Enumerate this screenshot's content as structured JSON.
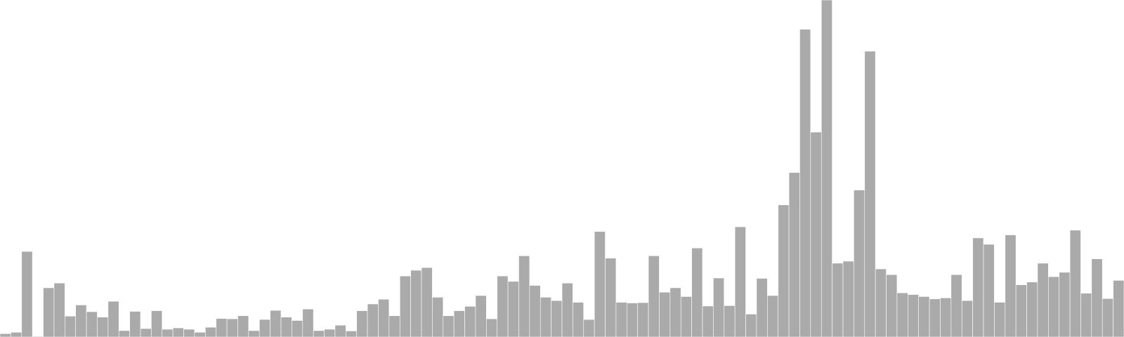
{
  "chart_data": {
    "type": "bar",
    "title": "",
    "xlabel": "",
    "ylabel": "",
    "grid": false,
    "legend": "none",
    "bar_color": "#AAAAAA",
    "ylim": [
      0,
      100
    ],
    "values": [
      1.0,
      1.4,
      25.4,
      0.2,
      14.6,
      16.0,
      6.2,
      9.5,
      7.5,
      5.9,
      10.6,
      1.9,
      7.6,
      2.5,
      7.8,
      2.3,
      2.7,
      2.3,
      1.4,
      2.9,
      5.5,
      5.4,
      6.3,
      1.9,
      5.2,
      7.9,
      5.9,
      4.9,
      8.3,
      1.9,
      2.3,
      3.5,
      1.8,
      7.8,
      9.8,
      11.2,
      6.3,
      18.1,
      19.8,
      20.6,
      11.8,
      6.3,
      7.8,
      9.1,
      12.3,
      5.4,
      18.1,
      16.5,
      24.1,
      15.3,
      11.8,
      10.8,
      16.0,
      10.3,
      5.2,
      31.3,
      23.4,
      10.3,
      10.1,
      10.2,
      24.1,
      13.3,
      14.6,
      12.0,
      26.4,
      9.2,
      17.5,
      9.3,
      32.7,
      6.8,
      17.4,
      12.3,
      39.2,
      48.8,
      91.3,
      60.8,
      100.0,
      21.9,
      22.5,
      43.6,
      84.8,
      20.2,
      18.5,
      13.1,
      12.6,
      12.0,
      11.3,
      11.6,
      18.5,
      10.8,
      29.4,
      27.5,
      10.3,
      30.3,
      15.5,
      16.3,
      21.9,
      17.9,
      19.2,
      31.7,
      13.0,
      23.2,
      11.4,
      16.8
    ]
  }
}
